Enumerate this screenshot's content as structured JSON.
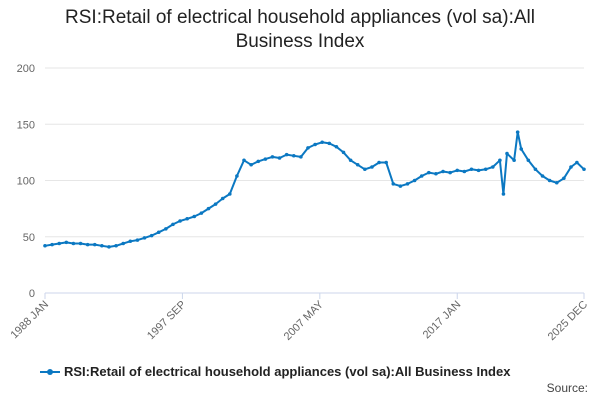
{
  "chart_data": {
    "type": "line",
    "title_lines": [
      "RSI:Retail of electrical household appliances (vol sa):All",
      "Business Index"
    ],
    "xlabel": "",
    "ylabel": "",
    "ylim": [
      0,
      200
    ],
    "yticks": [
      0,
      50,
      100,
      150,
      200
    ],
    "xticks": [
      "1988 JAN",
      "1997 SEP",
      "2007 MAY",
      "2017 JAN",
      "2025 DEC"
    ],
    "grid": true,
    "legend_position": "bottom",
    "series": [
      {
        "name": "RSI:Retail of electrical household appliances (vol sa):All Business Index",
        "color": "#0b78c2",
        "points": [
          [
            "1988-01",
            42
          ],
          [
            "1988-07",
            43
          ],
          [
            "1989-01",
            44
          ],
          [
            "1989-07",
            45
          ],
          [
            "1990-01",
            44
          ],
          [
            "1990-07",
            44
          ],
          [
            "1991-01",
            43
          ],
          [
            "1991-07",
            43
          ],
          [
            "1992-01",
            42
          ],
          [
            "1992-07",
            41
          ],
          [
            "1993-01",
            42
          ],
          [
            "1993-07",
            44
          ],
          [
            "1994-01",
            46
          ],
          [
            "1994-07",
            47
          ],
          [
            "1995-01",
            49
          ],
          [
            "1995-07",
            51
          ],
          [
            "1996-01",
            54
          ],
          [
            "1996-07",
            57
          ],
          [
            "1997-01",
            61
          ],
          [
            "1997-07",
            64
          ],
          [
            "1998-01",
            66
          ],
          [
            "1998-07",
            68
          ],
          [
            "1999-01",
            71
          ],
          [
            "1999-07",
            75
          ],
          [
            "2000-01",
            79
          ],
          [
            "2000-07",
            84
          ],
          [
            "2001-01",
            88
          ],
          [
            "2001-07",
            104
          ],
          [
            "2002-01",
            118
          ],
          [
            "2002-07",
            114
          ],
          [
            "2003-01",
            117
          ],
          [
            "2003-07",
            119
          ],
          [
            "2004-01",
            121
          ],
          [
            "2004-07",
            120
          ],
          [
            "2005-01",
            123
          ],
          [
            "2005-07",
            122
          ],
          [
            "2006-01",
            121
          ],
          [
            "2006-07",
            129
          ],
          [
            "2007-01",
            132
          ],
          [
            "2007-07",
            134
          ],
          [
            "2008-01",
            133
          ],
          [
            "2008-07",
            130
          ],
          [
            "2009-01",
            125
          ],
          [
            "2009-07",
            118
          ],
          [
            "2010-01",
            114
          ],
          [
            "2010-07",
            110
          ],
          [
            "2011-01",
            112
          ],
          [
            "2011-07",
            116
          ],
          [
            "2012-01",
            116
          ],
          [
            "2012-07",
            97
          ],
          [
            "2013-01",
            95
          ],
          [
            "2013-07",
            97
          ],
          [
            "2014-01",
            100
          ],
          [
            "2014-07",
            104
          ],
          [
            "2015-01",
            107
          ],
          [
            "2015-07",
            106
          ],
          [
            "2016-01",
            108
          ],
          [
            "2016-07",
            107
          ],
          [
            "2017-01",
            109
          ],
          [
            "2017-07",
            108
          ],
          [
            "2018-01",
            110
          ],
          [
            "2018-07",
            109
          ],
          [
            "2019-01",
            110
          ],
          [
            "2019-07",
            112
          ],
          [
            "2020-01",
            118
          ],
          [
            "2020-04",
            88
          ],
          [
            "2020-07",
            124
          ],
          [
            "2021-01",
            118
          ],
          [
            "2021-04",
            143
          ],
          [
            "2021-07",
            128
          ],
          [
            "2022-01",
            118
          ],
          [
            "2022-07",
            110
          ],
          [
            "2023-01",
            104
          ],
          [
            "2023-07",
            100
          ],
          [
            "2024-01",
            98
          ],
          [
            "2024-07",
            102
          ],
          [
            "2025-01",
            112
          ],
          [
            "2025-06",
            116
          ],
          [
            "2025-12",
            110
          ]
        ]
      }
    ]
  },
  "legend": {
    "label": "RSI:Retail of electrical household appliances (vol sa):All Business Index"
  },
  "footer": {
    "source": "Source:"
  }
}
